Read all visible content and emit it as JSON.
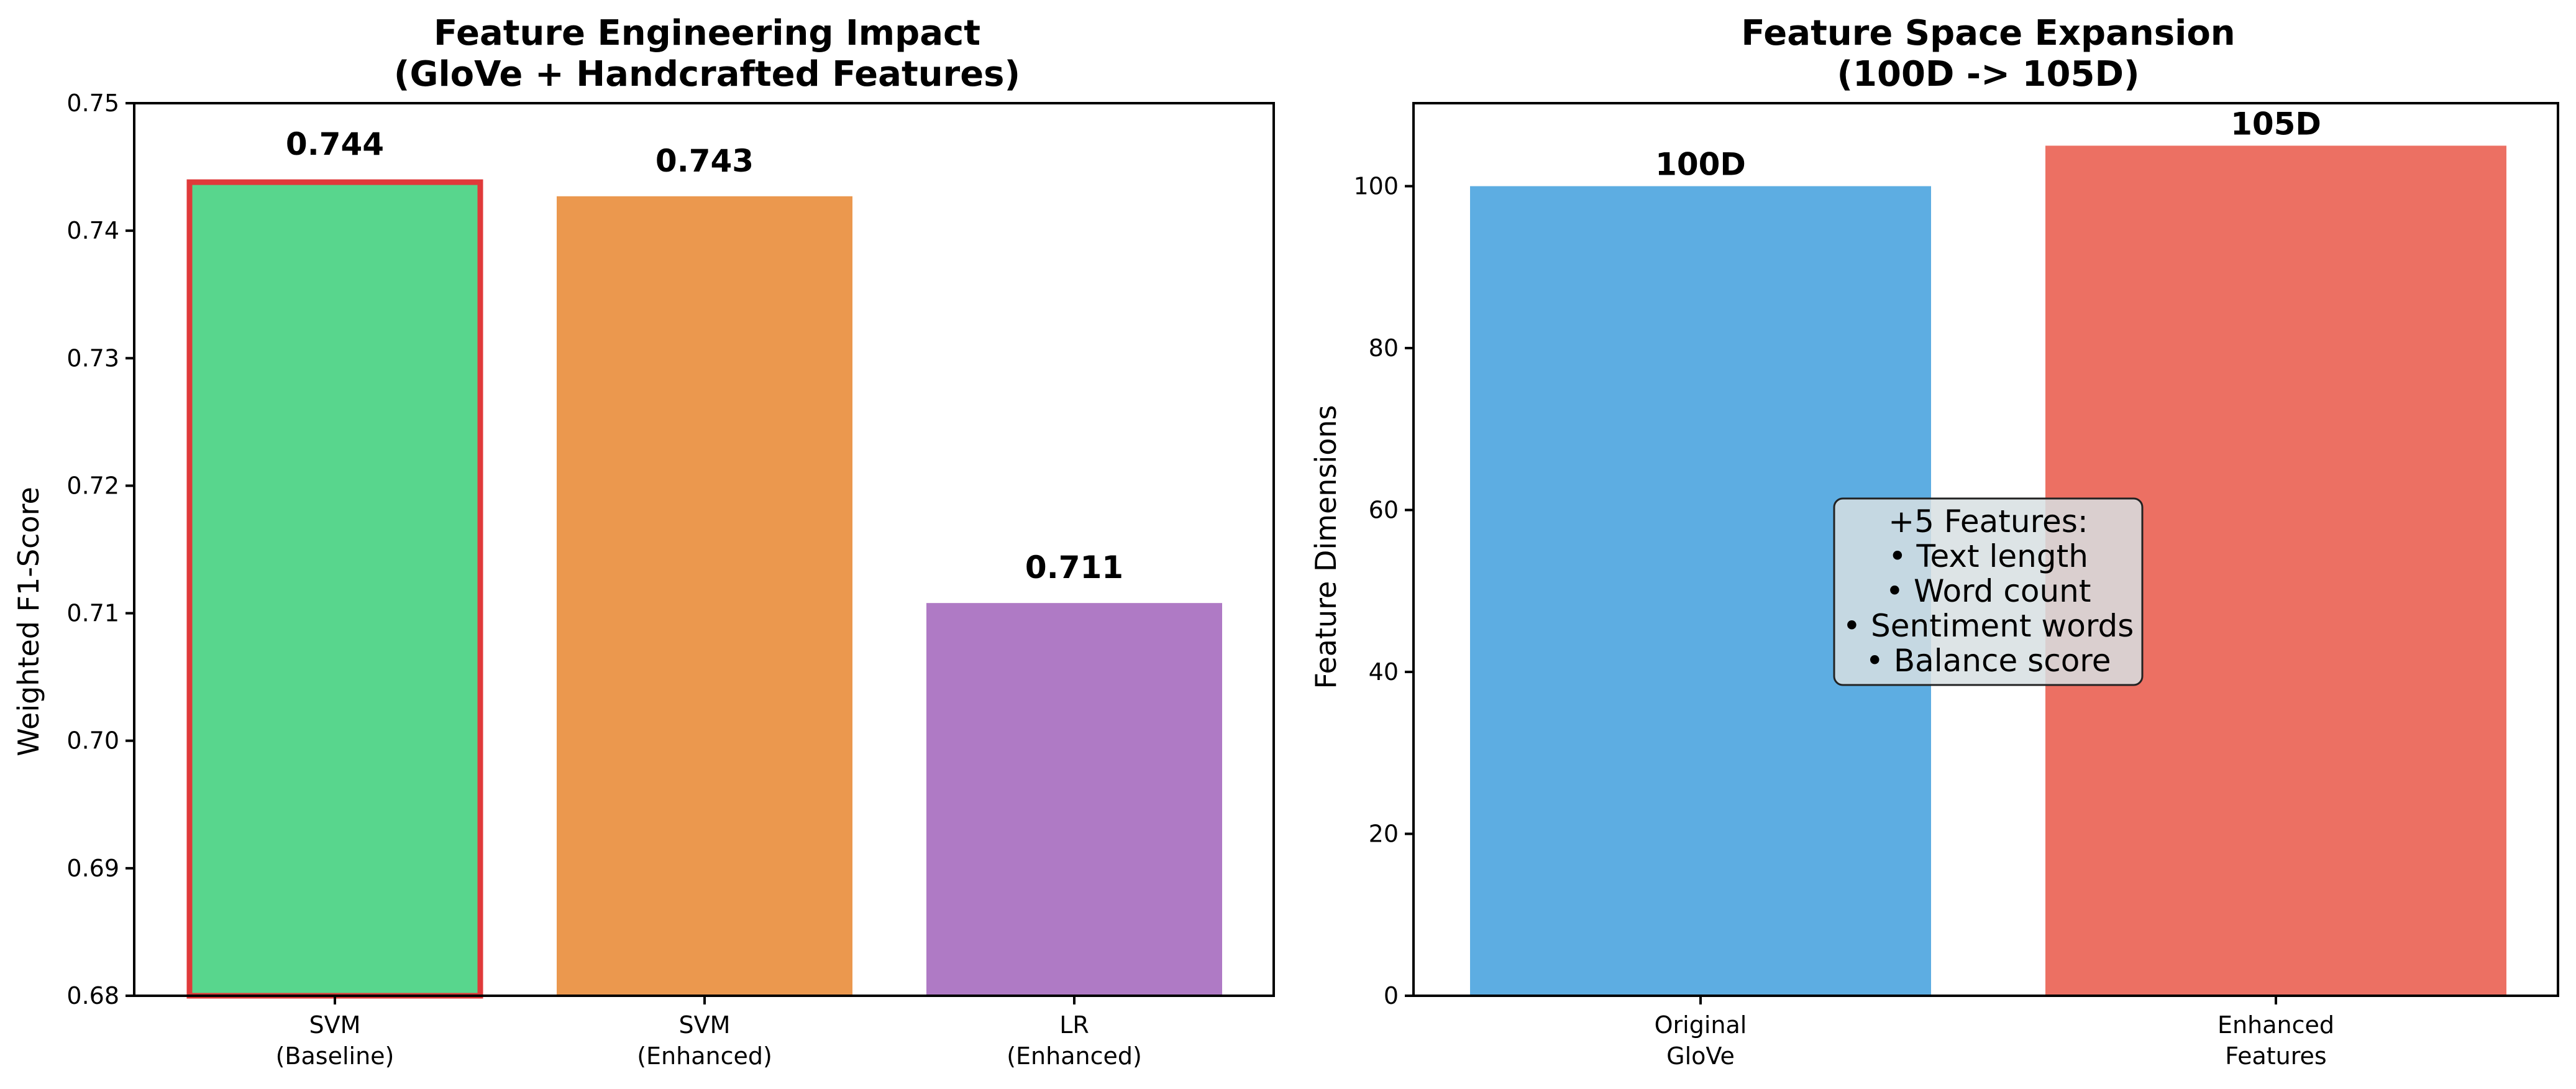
{
  "chart_data": [
    {
      "type": "bar",
      "title": [
        "Feature Engineering Impact",
        "(GloVe + Handcrafted Features)"
      ],
      "xlabel": "",
      "ylabel": "Weighted F1-Score",
      "ylim": [
        0.68,
        0.75
      ],
      "yticks": [
        "0.68",
        "0.69",
        "0.70",
        "0.71",
        "0.72",
        "0.73",
        "0.74",
        "0.75"
      ],
      "categories": [
        [
          "SVM",
          "(Baseline)"
        ],
        [
          "SVM",
          "(Enhanced)"
        ],
        [
          "LR",
          "(Enhanced)"
        ]
      ],
      "values": [
        0.744,
        0.7427,
        0.7108
      ],
      "data_labels": [
        "0.744",
        "0.743",
        "0.711"
      ],
      "colors": [
        "#58d68d",
        "#eb984e",
        "#af7ac5"
      ],
      "highlight": {
        "index": 0,
        "edge_color": "#e03a3a"
      }
    },
    {
      "type": "bar",
      "title": [
        "Feature Space Expansion",
        "(100D -> 105D)"
      ],
      "xlabel": "",
      "ylabel": "Feature Dimensions",
      "ylim": [
        0,
        110.25
      ],
      "yticks": [
        "0",
        "20",
        "40",
        "60",
        "80",
        "100"
      ],
      "categories": [
        [
          "Original",
          "GloVe"
        ],
        [
          "Enhanced",
          "Features"
        ]
      ],
      "values": [
        100,
        105
      ],
      "data_labels": [
        "100D",
        "105D"
      ],
      "colors": [
        "#5dade2",
        "#ec7063"
      ],
      "annotation": [
        "+5 Features:",
        "• Text length",
        "• Word count",
        "• Sentiment words",
        "• Balance score"
      ]
    }
  ]
}
